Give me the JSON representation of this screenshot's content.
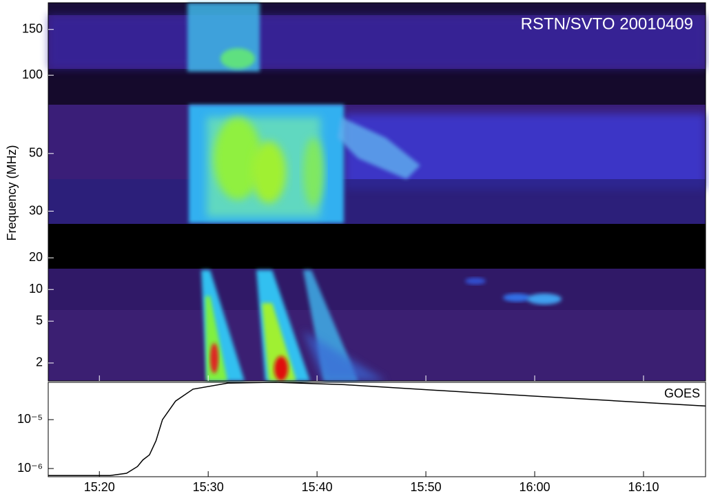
{
  "chart_data": [
    {
      "type": "spectrogram",
      "title": "RSTN/SVTO 20010409",
      "ylabel": "Frequency (MHz)",
      "ylim": [
        26,
        190
      ],
      "log_y": true,
      "yticks": [
        30,
        50,
        100,
        150
      ]
    },
    {
      "type": "spectrogram",
      "ylim": [
        1.35,
        39
      ],
      "log_y": true,
      "yticks": [
        2,
        5,
        10,
        20
      ]
    },
    {
      "type": "line",
      "log_y": true,
      "xlim": [
        915.3,
        975.7
      ],
      "xticks": [
        {
          "value": 920,
          "label": "15:20"
        },
        {
          "value": 930,
          "label": "15:30"
        },
        {
          "value": 940,
          "label": "15:40"
        },
        {
          "value": 950,
          "label": "15:50"
        },
        {
          "value": 960,
          "label": "16:00"
        },
        {
          "value": 970,
          "label": "16:10"
        }
      ],
      "ylim": [
        6.8e-07,
        5.8e-05
      ],
      "yticks": [
        {
          "value": 1e-06,
          "label": "10⁻⁶"
        },
        {
          "value": 1e-05,
          "label": "10⁻⁵"
        }
      ],
      "x": [
        915.3,
        918,
        921,
        922.5,
        923.5,
        924,
        924.6,
        925.2,
        925.8,
        927,
        928.6,
        931.8,
        936.2,
        942.5,
        955.2,
        967.8,
        975.7
      ],
      "series": [
        {
          "name": "GOES",
          "color": "#000000",
          "values": [
            7.2e-07,
            7.2e-07,
            7.2e-07,
            8e-07,
            1.1e-06,
            1.5e-06,
            1.9e-06,
            3.7e-06,
            1e-05,
            2.4e-05,
            4.2e-05,
            5.6e-05,
            5.8e-05,
            5.2e-05,
            3.5e-05,
            2.4e-05,
            1.9e-05
          ]
        }
      ]
    }
  ]
}
